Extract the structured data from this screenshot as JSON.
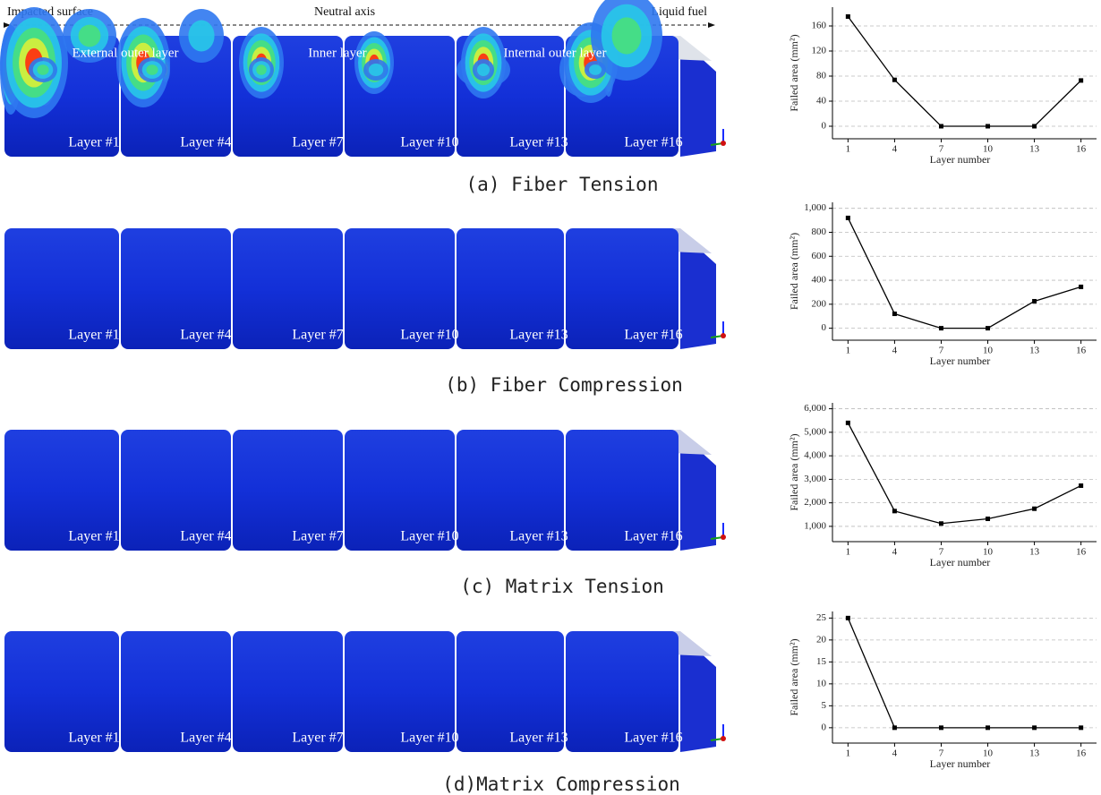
{
  "figure": {
    "header": {
      "left": "Impacted surface",
      "center": "Neutral axis",
      "right": "Liquid fuel"
    },
    "regions": [
      "External outer layer",
      "Inner layer",
      "Internal outer layer"
    ],
    "layers": [
      "Layer #1",
      "Layer #4",
      "Layer #7",
      "Layer #10",
      "Layer #13",
      "Layer #16"
    ],
    "captions": [
      "(a) Fiber Tension",
      "(b) Fiber Compression",
      "(c) Matrix Tension",
      "(d)Matrix Compression"
    ]
  },
  "chart_data": [
    {
      "type": "line",
      "x": [
        1,
        4,
        7,
        10,
        13,
        16
      ],
      "values": [
        175,
        74,
        0,
        0,
        0,
        73
      ],
      "color": "#000000",
      "xlim": [
        0,
        17
      ],
      "xticks": [
        1,
        4,
        7,
        10,
        13,
        16
      ],
      "ylim": [
        -20,
        190
      ],
      "yticks": [
        0,
        40,
        80,
        120,
        160
      ],
      "xlabel": "Layer number",
      "ylabel": "Failed area (mm²)",
      "grid": true
    },
    {
      "type": "line",
      "x": [
        1,
        4,
        7,
        10,
        13,
        16
      ],
      "values": [
        920,
        120,
        0,
        0,
        225,
        345
      ],
      "color": "#000000",
      "xlim": [
        0,
        17
      ],
      "xticks": [
        1,
        4,
        7,
        10,
        13,
        16
      ],
      "ylim": [
        -100,
        1050
      ],
      "yticks": [
        0,
        200,
        400,
        600,
        800,
        {
          "value": 1000,
          "label": "1,000"
        }
      ],
      "xlabel": "Layer number",
      "ylabel": "Failed area (mm²)",
      "grid": true
    },
    {
      "type": "line",
      "x": [
        1,
        4,
        7,
        10,
        13,
        16
      ],
      "values": [
        5400,
        1650,
        1120,
        1320,
        1750,
        2730
      ],
      "color": "#000000",
      "xlim": [
        0,
        17
      ],
      "xticks": [
        1,
        4,
        7,
        10,
        13,
        16
      ],
      "ylim": [
        350,
        6250
      ],
      "yticks": [
        {
          "value": 1000,
          "label": "1,000"
        },
        {
          "value": 2000,
          "label": "2,000"
        },
        {
          "value": 3000,
          "label": "3,000"
        },
        {
          "value": 4000,
          "label": "4,000"
        },
        {
          "value": 5000,
          "label": "5,000"
        },
        {
          "value": 6000,
          "label": "6,000"
        }
      ],
      "xlabel": "Layer number",
      "ylabel": "Failed area (mm²)",
      "grid": true
    },
    {
      "type": "line",
      "x": [
        1,
        4,
        7,
        10,
        13,
        16
      ],
      "values": [
        25,
        0,
        0,
        0,
        0,
        0
      ],
      "color": "#000000",
      "xlim": [
        0,
        17
      ],
      "xticks": [
        1,
        4,
        7,
        10,
        13,
        16
      ],
      "ylim": [
        -3.5,
        26.5
      ],
      "yticks": [
        0,
        5,
        10,
        15,
        20,
        25
      ],
      "xlabel": "Layer number",
      "ylabel": "Failed area (mm²)",
      "grid": true
    }
  ]
}
